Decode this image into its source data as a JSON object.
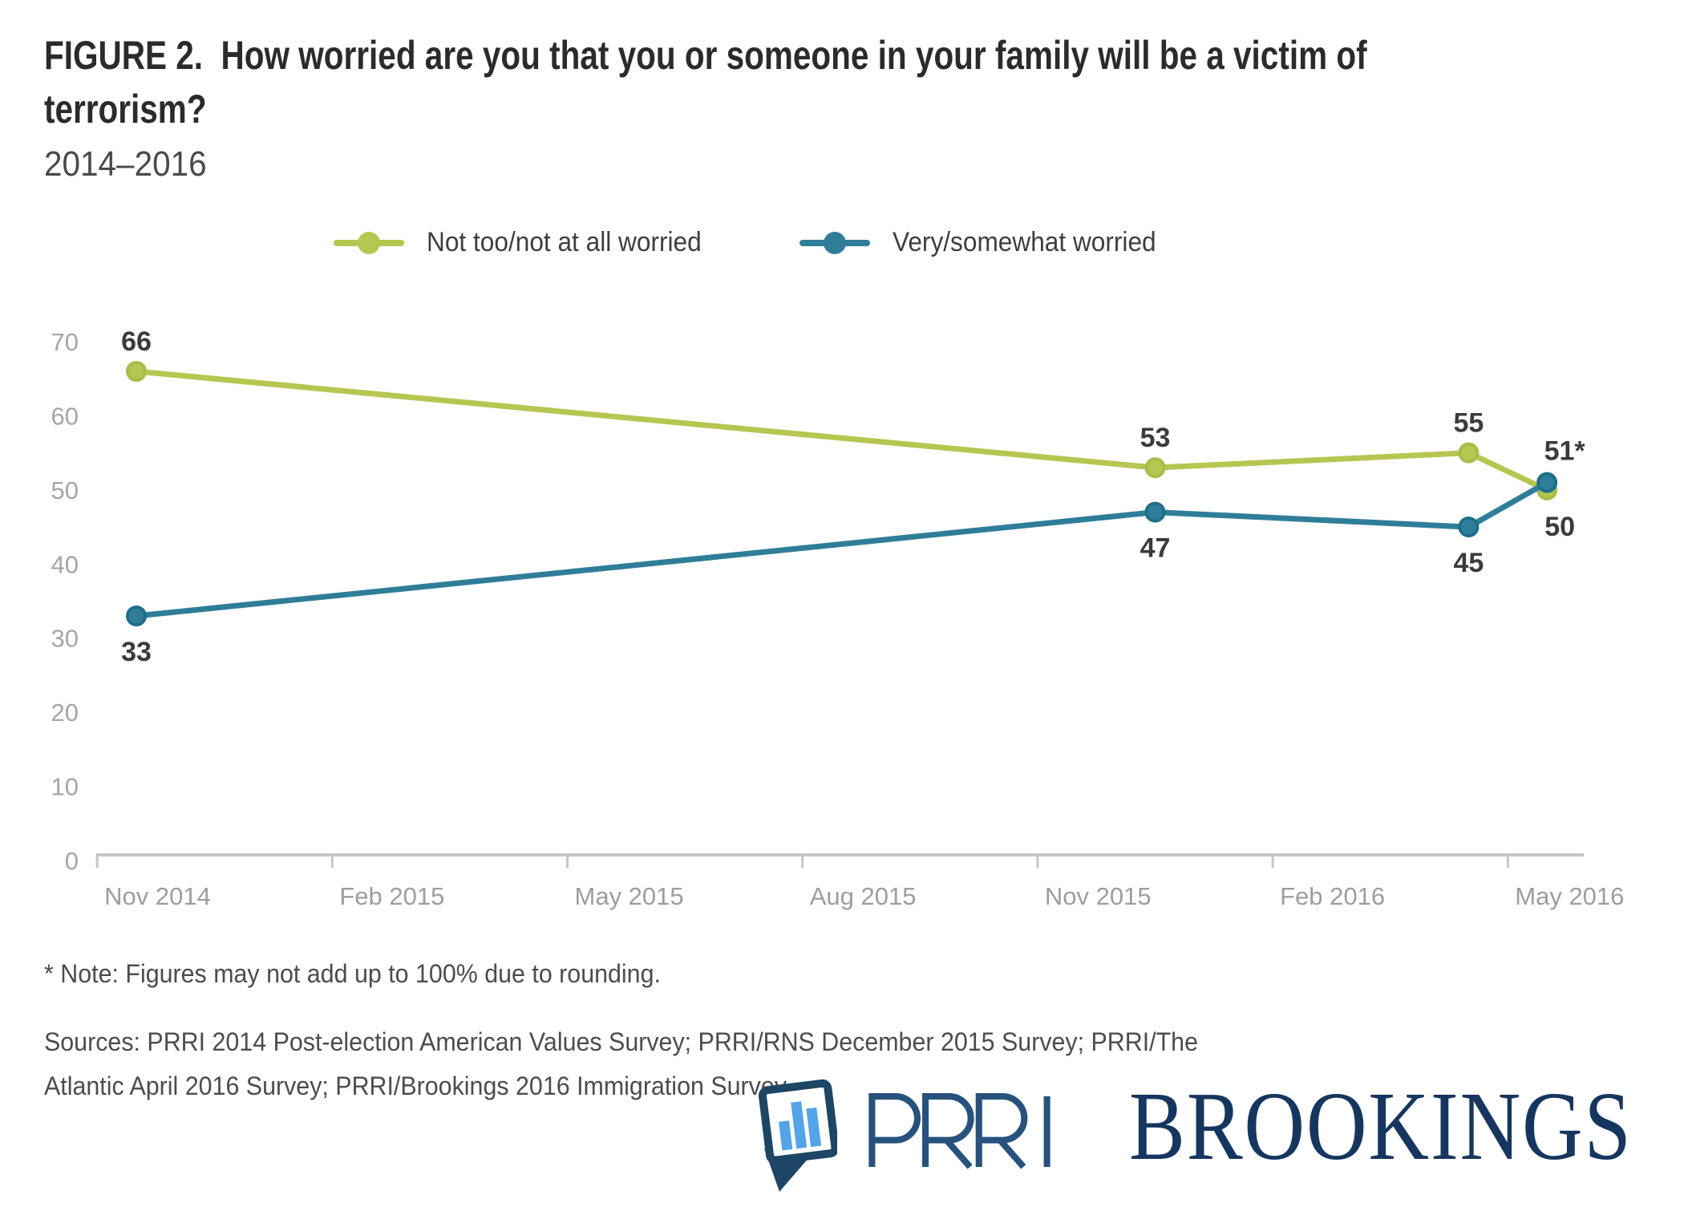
{
  "page": {
    "title": "FIGURE 2.  How worried are you that you or someone in your family will be a victim of terrorism?",
    "subtitle": "2014–2016",
    "note": "* Note: Figures may not add up to 100% due to rounding.",
    "sources": "Sources: PRRI 2014 Post-election American Values Survey; PRRI/RNS December 2015 Survey; PRRI/The Atlantic April 2016 Survey; PRRI/Brookings 2016 Immigration Survey.",
    "logos": {
      "prri_icon": "speech-bubble-bar-chart-icon",
      "prri_label": "PRRI",
      "brookings_label": "BROOKINGS",
      "navy": "#1c4566",
      "bar_blue": "#55a3e8",
      "prri_text_navy": "#27527e",
      "brookings_navy": "#16365f"
    }
  },
  "chart_data": {
    "type": "line",
    "title": "FIGURE 2. How worried are you that you or someone in your family will be a victim of terrorism?",
    "subtitle": "2014–2016",
    "xlabel": "",
    "ylabel": "",
    "ylim": [
      0,
      70
    ],
    "y_ticks": [
      70,
      60,
      50,
      40,
      30,
      20,
      10,
      0
    ],
    "x_ticks": [
      "Nov 2014",
      "Feb 2015",
      "May 2015",
      "Aug 2015",
      "Nov 2015",
      "Feb 2016",
      "May 2016"
    ],
    "grid": false,
    "legend_position": "top",
    "axis_color": "#c6c6c6",
    "label_color": "#3b3b3b",
    "series": [
      {
        "name": "Not too/not at all worried",
        "color": "#b5c751",
        "dot_stroke": "#a9bc48",
        "points": [
          {
            "x_label": "Nov 2014",
            "month": 0,
            "value": 66,
            "data_label": "66",
            "label_position": "above"
          },
          {
            "x_label": "Dec 2015",
            "month": 13,
            "value": 53,
            "data_label": "53",
            "label_position": "above"
          },
          {
            "x_label": "Apr 2016",
            "month": 17,
            "value": 55,
            "data_label": "55",
            "label_position": "above"
          },
          {
            "x_label": "May 2016",
            "month": 18,
            "value": 50,
            "data_label": "50",
            "label_position": "below-right"
          }
        ]
      },
      {
        "name": "Very/somewhat worried",
        "color": "#2f7e99",
        "dot_stroke": "#1f6f8a",
        "points": [
          {
            "x_label": "Nov 2014",
            "month": 0,
            "value": 33,
            "data_label": "33",
            "label_position": "below"
          },
          {
            "x_label": "Dec 2015",
            "month": 13,
            "value": 47,
            "data_label": "47",
            "label_position": "below"
          },
          {
            "x_label": "Apr 2016",
            "month": 17,
            "value": 45,
            "data_label": "45",
            "label_position": "below"
          },
          {
            "x_label": "May 2016",
            "month": 18,
            "value": 51,
            "data_label": "51*",
            "label_position": "above-right"
          }
        ]
      }
    ]
  }
}
